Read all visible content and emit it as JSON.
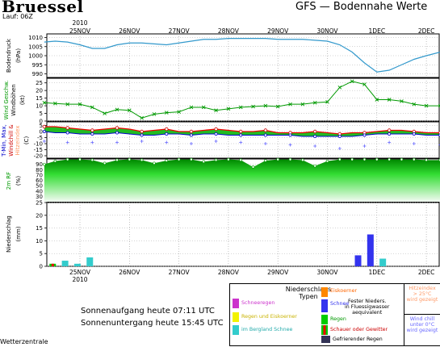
{
  "header": {
    "title": "Bruessel",
    "run": "Lauf: 06Z",
    "subtitle": "GFS — Bodennahe Werte"
  },
  "sun": {
    "rise": "Sonnenaufgang heute 07:11 UTC",
    "set": "Sonnenuntergang heute 15:45 UTC"
  },
  "footer": "Wetterzentrale",
  "year": "2010",
  "dates": [
    "25NOV",
    "26NOV",
    "27NOV",
    "28NOV",
    "29NOV",
    "30NOV",
    "1DEC",
    "2DEC"
  ],
  "panels": {
    "pressure": {
      "label": "Bodendruck",
      "unit": "(hPa)"
    },
    "wind": {
      "label1": "Wind Geschw.",
      "label2": "Windböhen",
      "unit": "(kt)"
    },
    "temp": {
      "label1": "T-Min, Max,",
      "label2": "Windchill &",
      "label3": "Hitzeindex",
      "unit": "(C)"
    },
    "rh": {
      "label": "2m RF",
      "unit": "(%)"
    },
    "precip": {
      "label": "Niederschlag",
      "unit": "(mm)"
    }
  },
  "legend": {
    "title1": "Niederschlags",
    "title2": "Typen",
    "schneeregen": "Schneeregen",
    "regen_eis": "Regen und Eiskoerner",
    "bergland": "im Bergland Schnee",
    "eiskoerner": "Eiskoerner",
    "schnee": "Schnee",
    "fester1": "Fester Nieders.",
    "fester2": "in Fluessigwasser",
    "fester3": "aequivalent",
    "regen": "Regen",
    "schauer": "Schauer oder Gewitter",
    "gefrierend": "Gefrierender Regen",
    "hitze1": "Hitzeindex",
    "hitze2": "> 25°C",
    "hitze3": "wird gezeigt",
    "chill1": "Wind chill",
    "chill2": "unter 0°C",
    "chill3": "wird gezeigt"
  },
  "colors": {
    "pressure": "#3399cc",
    "wind": "#009900",
    "schneeregen": "#cc33cc",
    "regen_eis": "#f2f200",
    "bergland": "#33cccc",
    "eiskoerner": "#ff8800",
    "schnee": "#3333ee",
    "regen": "#00cc00",
    "schauer": "#ee0000",
    "gefrierend": "#333355",
    "hitze": "#ff9966",
    "chill": "#6666ff"
  },
  "chart_data": [
    {
      "type": "line",
      "name": "Bodendruck",
      "ylabel": "Bodendruck (hPa)",
      "ylim": [
        988,
        1012
      ],
      "yticks": [
        990,
        995,
        1000,
        1005,
        1010
      ],
      "x_day": [
        -0.72,
        -0.5,
        -0.25,
        0,
        0.25,
        0.5,
        0.75,
        1,
        1.25,
        1.5,
        1.75,
        2,
        2.25,
        2.5,
        2.75,
        3,
        3.25,
        3.5,
        3.75,
        4,
        4.25,
        4.5,
        4.75,
        5,
        5.25,
        5.5,
        5.75,
        6,
        6.25,
        6.5,
        6.75,
        7,
        7.28
      ],
      "y": [
        1007.5,
        1008,
        1007.5,
        1006,
        1004,
        1004,
        1006,
        1007,
        1007,
        1006.5,
        1006,
        1007,
        1008,
        1009,
        1009,
        1009.5,
        1009.5,
        1009.5,
        1009.5,
        1009,
        1009,
        1009,
        1008.5,
        1008,
        1006,
        1002,
        996,
        991,
        992,
        995,
        998,
        1000,
        1002
      ]
    },
    {
      "type": "line",
      "name": "Windböhen",
      "ylabel": "Windböhen (kt)",
      "ylim": [
        0,
        28
      ],
      "yticks": [
        0,
        5,
        10,
        15,
        20,
        25
      ],
      "x_day": [
        -0.72,
        -0.5,
        -0.25,
        0,
        0.25,
        0.5,
        0.75,
        1,
        1.25,
        1.5,
        1.75,
        2,
        2.25,
        2.5,
        2.75,
        3,
        3.25,
        3.5,
        3.75,
        4,
        4.25,
        4.5,
        4.75,
        5,
        5.25,
        5.5,
        5.75,
        6,
        6.25,
        6.5,
        6.75,
        7,
        7.28
      ],
      "y": [
        12,
        11.5,
        11,
        11,
        9,
        5,
        7.5,
        7,
        2,
        4.5,
        5.5,
        6,
        9,
        9,
        7,
        8,
        9,
        9.5,
        10,
        9.5,
        11,
        11,
        12,
        12.5,
        22,
        26,
        24,
        14,
        14,
        13,
        11,
        10,
        10
      ]
    },
    {
      "type": "line",
      "name": "T-Min, Max",
      "ylabel": "(C)",
      "ylim": [
        -22,
        8
      ],
      "yticks": [
        -20,
        -15,
        -10,
        -5,
        0,
        5
      ],
      "x_day": [
        -0.72,
        -0.5,
        -0.25,
        0,
        0.25,
        0.5,
        0.75,
        1,
        1.25,
        1.5,
        1.75,
        2,
        2.25,
        2.5,
        2.75,
        3,
        3.25,
        3.5,
        3.75,
        4,
        4.25,
        4.5,
        4.75,
        5,
        5.25,
        5.5,
        5.75,
        6,
        6.25,
        6.5,
        6.75,
        7,
        7.28
      ],
      "tmax": [
        4,
        4,
        3,
        2,
        1,
        2,
        3,
        2,
        0,
        1,
        2,
        0,
        0,
        1,
        2,
        1,
        0,
        0,
        1,
        -1,
        -1,
        -1,
        0,
        -1,
        -2,
        -1,
        -1,
        0,
        1,
        1,
        0,
        -1,
        -1
      ],
      "tmin": [
        0,
        -1,
        -1,
        -2,
        -2,
        -2,
        -1,
        -2,
        -3,
        -3,
        -2,
        -2,
        -3,
        -2,
        -2,
        -3,
        -3,
        -3,
        -3,
        -3,
        -3,
        -4,
        -4,
        -4,
        -4,
        -4,
        -3,
        -2,
        -2,
        -2,
        -2,
        -3,
        -3
      ],
      "windchill": [
        -8,
        -9,
        -9,
        -10,
        -9,
        -8,
        -9,
        -10,
        -8,
        -8,
        -9,
        -10,
        -10,
        -9,
        -8,
        -9,
        -9,
        -10,
        -10,
        -11,
        -11,
        -11,
        -12,
        -12,
        -14,
        -14,
        -12,
        -10,
        -9,
        -10,
        -10,
        -11,
        -11
      ]
    },
    {
      "type": "area",
      "name": "2m RF",
      "ylabel": "2m RF (%)",
      "ylim": [
        20,
        100
      ],
      "yticks": [
        30,
        40,
        50,
        60,
        70,
        80,
        90
      ],
      "x_day": [
        -0.72,
        -0.5,
        -0.25,
        0,
        0.25,
        0.5,
        0.75,
        1,
        1.25,
        1.5,
        1.75,
        2,
        2.25,
        2.5,
        2.75,
        3,
        3.25,
        3.5,
        3.75,
        4,
        4.25,
        4.5,
        4.75,
        5,
        5.25,
        5.5,
        5.75,
        6,
        6.25,
        6.5,
        6.75,
        7,
        7.28
      ],
      "y": [
        90,
        96,
        99,
        99,
        98,
        92,
        98,
        99,
        98,
        92,
        97,
        99,
        99,
        95,
        98,
        99,
        98,
        85,
        97,
        99,
        99,
        98,
        87,
        96,
        99,
        99,
        99,
        99,
        99,
        99,
        99,
        98,
        98
      ]
    },
    {
      "type": "bar",
      "name": "Niederschlag",
      "ylabel": "Niederschlag (mm)",
      "ylim": [
        0,
        25
      ],
      "yticks": [
        0,
        5,
        10,
        15,
        20,
        25
      ],
      "bars": [
        {
          "x_day": -0.55,
          "value": 1.0,
          "kind": "regen"
        },
        {
          "x_day": -0.3,
          "value": 2.2,
          "kind": "bergland"
        },
        {
          "x_day": -0.05,
          "value": 1.0,
          "kind": "bergland"
        },
        {
          "x_day": 0.2,
          "value": 3.5,
          "kind": "bergland"
        },
        {
          "x_day": 5.62,
          "value": 4.3,
          "kind": "schnee"
        },
        {
          "x_day": 5.87,
          "value": 12.5,
          "kind": "schnee"
        },
        {
          "x_day": 6.12,
          "value": 3.0,
          "kind": "bergland"
        }
      ]
    }
  ]
}
